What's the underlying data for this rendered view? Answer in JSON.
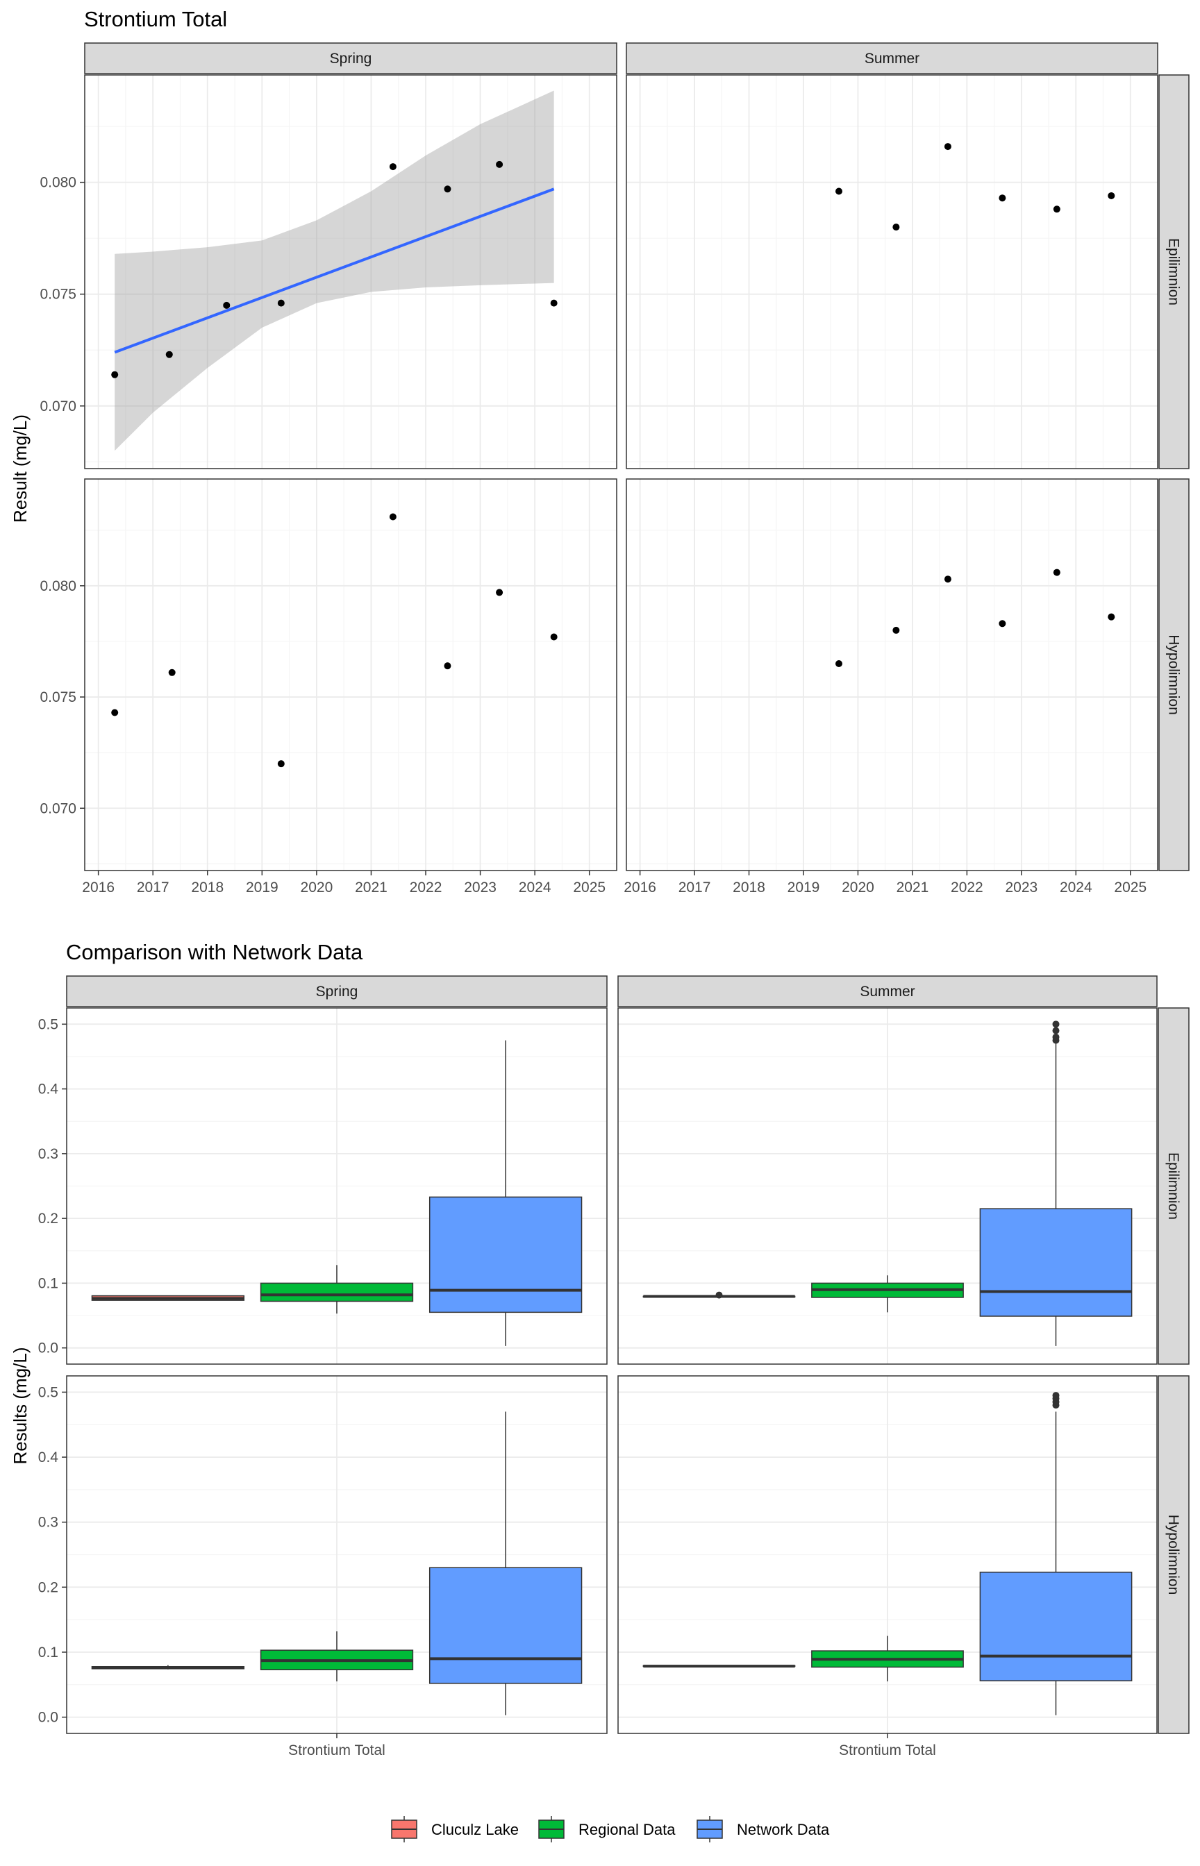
{
  "chart_data": [
    {
      "type": "scatter",
      "title": "Strontium Total",
      "ylabel": "Result (mg/L)",
      "xlabel": "",
      "xlim": [
        2015.75,
        2025.5
      ],
      "ylim": [
        0.0672,
        0.0848
      ],
      "xticks": [
        2016,
        2017,
        2018,
        2019,
        2020,
        2021,
        2022,
        2023,
        2024,
        2025
      ],
      "yticks": [
        0.07,
        0.075,
        0.08
      ],
      "ytick_labels": [
        "0.070",
        "0.075",
        "0.080"
      ],
      "col_facets": [
        "Spring",
        "Summer"
      ],
      "row_facets": [
        "Epilimnion",
        "Hypolimnion"
      ],
      "grid": true,
      "panels": [
        {
          "col": "Spring",
          "row": "Epilimnion",
          "points": [
            {
              "x": 2016.3,
              "y": 0.0714
            },
            {
              "x": 2017.3,
              "y": 0.0723
            },
            {
              "x": 2018.35,
              "y": 0.0745
            },
            {
              "x": 2019.35,
              "y": 0.0746
            },
            {
              "x": 2021.4,
              "y": 0.0807
            },
            {
              "x": 2022.4,
              "y": 0.0797
            },
            {
              "x": 2023.35,
              "y": 0.0808
            },
            {
              "x": 2024.35,
              "y": 0.0746
            }
          ],
          "trend": {
            "x": [
              2016.3,
              2024.35
            ],
            "y": [
              0.0724,
              0.0797
            ],
            "color": "#3366FF"
          },
          "ribbon": [
            {
              "x": 2016.3,
              "lo": 0.068,
              "hi": 0.0768
            },
            {
              "x": 2017.0,
              "lo": 0.0697,
              "hi": 0.0769
            },
            {
              "x": 2018.0,
              "lo": 0.0717,
              "hi": 0.0771
            },
            {
              "x": 2019.0,
              "lo": 0.0735,
              "hi": 0.0774
            },
            {
              "x": 2020.0,
              "lo": 0.0746,
              "hi": 0.0783
            },
            {
              "x": 2021.0,
              "lo": 0.0751,
              "hi": 0.0796
            },
            {
              "x": 2022.0,
              "lo": 0.0753,
              "hi": 0.0812
            },
            {
              "x": 2023.0,
              "lo": 0.0754,
              "hi": 0.0826
            },
            {
              "x": 2024.35,
              "lo": 0.0755,
              "hi": 0.0841
            }
          ]
        },
        {
          "col": "Summer",
          "row": "Epilimnion",
          "points": [
            {
              "x": 2019.65,
              "y": 0.0796
            },
            {
              "x": 2020.7,
              "y": 0.078
            },
            {
              "x": 2021.65,
              "y": 0.0816
            },
            {
              "x": 2022.65,
              "y": 0.0793
            },
            {
              "x": 2023.65,
              "y": 0.0788
            },
            {
              "x": 2024.65,
              "y": 0.0794
            }
          ]
        },
        {
          "col": "Spring",
          "row": "Hypolimnion",
          "points": [
            {
              "x": 2016.3,
              "y": 0.0743
            },
            {
              "x": 2017.35,
              "y": 0.0761
            },
            {
              "x": 2019.35,
              "y": 0.072
            },
            {
              "x": 2021.4,
              "y": 0.0831
            },
            {
              "x": 2022.4,
              "y": 0.0764
            },
            {
              "x": 2023.35,
              "y": 0.0797
            },
            {
              "x": 2024.35,
              "y": 0.0777
            }
          ]
        },
        {
          "col": "Summer",
          "row": "Hypolimnion",
          "points": [
            {
              "x": 2019.65,
              "y": 0.0765
            },
            {
              "x": 2020.7,
              "y": 0.078
            },
            {
              "x": 2021.65,
              "y": 0.0803
            },
            {
              "x": 2022.65,
              "y": 0.0783
            },
            {
              "x": 2023.65,
              "y": 0.0806
            },
            {
              "x": 2024.65,
              "y": 0.0786
            }
          ]
        }
      ]
    },
    {
      "type": "boxplot",
      "title": "Comparison with Network Data",
      "ylabel": "Results (mg/L)",
      "categories": [
        "Strontium Total"
      ],
      "ylim": [
        -0.025,
        0.525
      ],
      "yticks": [
        0.0,
        0.1,
        0.2,
        0.3,
        0.4,
        0.5
      ],
      "ytick_labels": [
        "0.0",
        "0.1",
        "0.2",
        "0.3",
        "0.4",
        "0.5"
      ],
      "col_facets": [
        "Spring",
        "Summer"
      ],
      "row_facets": [
        "Epilimnion",
        "Hypolimnion"
      ],
      "grid": true,
      "legend_position": "bottom",
      "groups": [
        {
          "name": "Cluculz Lake",
          "color": "#F8766D"
        },
        {
          "name": "Regional Data",
          "color": "#00BA38"
        },
        {
          "name": "Network Data",
          "color": "#619CFF"
        }
      ],
      "panels": [
        {
          "col": "Spring",
          "row": "Epilimnion",
          "boxes": [
            {
              "group": "Cluculz Lake",
              "min": 0.0735,
              "q1": 0.0735,
              "median": 0.0765,
              "q3": 0.0805,
              "max": 0.0808,
              "outliers": []
            },
            {
              "group": "Regional Data",
              "min": 0.053,
              "q1": 0.072,
              "median": 0.082,
              "q3": 0.1,
              "max": 0.128,
              "outliers": []
            },
            {
              "group": "Network Data",
              "min": 0.003,
              "q1": 0.055,
              "median": 0.089,
              "q3": 0.233,
              "max": 0.475,
              "outliers": []
            }
          ]
        },
        {
          "col": "Summer",
          "row": "Epilimnion",
          "boxes": [
            {
              "group": "Cluculz Lake",
              "min": 0.0788,
              "q1": 0.0791,
              "median": 0.0795,
              "q3": 0.0797,
              "max": 0.0797,
              "outliers": [
                0.0816
              ]
            },
            {
              "group": "Regional Data",
              "min": 0.055,
              "q1": 0.078,
              "median": 0.09,
              "q3": 0.1,
              "max": 0.112,
              "outliers": []
            },
            {
              "group": "Network Data",
              "min": 0.003,
              "q1": 0.049,
              "median": 0.087,
              "q3": 0.215,
              "max": 0.47,
              "outliers": [
                0.475,
                0.48,
                0.49,
                0.5
              ]
            }
          ]
        },
        {
          "col": "Spring",
          "row": "Hypolimnion",
          "boxes": [
            {
              "group": "Cluculz Lake",
              "min": 0.0735,
              "q1": 0.0745,
              "median": 0.0765,
              "q3": 0.0778,
              "max": 0.08,
              "outliers": []
            },
            {
              "group": "Regional Data",
              "min": 0.055,
              "q1": 0.073,
              "median": 0.087,
              "q3": 0.103,
              "max": 0.132,
              "outliers": []
            },
            {
              "group": "Network Data",
              "min": 0.003,
              "q1": 0.052,
              "median": 0.09,
              "q3": 0.23,
              "max": 0.47,
              "outliers": []
            }
          ]
        },
        {
          "col": "Summer",
          "row": "Hypolimnion",
          "boxes": [
            {
              "group": "Cluculz Lake",
              "min": 0.0778,
              "q1": 0.0782,
              "median": 0.0785,
              "q3": 0.0792,
              "max": 0.0795,
              "outliers": []
            },
            {
              "group": "Regional Data",
              "min": 0.055,
              "q1": 0.077,
              "median": 0.089,
              "q3": 0.102,
              "max": 0.125,
              "outliers": []
            },
            {
              "group": "Network Data",
              "min": 0.003,
              "q1": 0.056,
              "median": 0.094,
              "q3": 0.223,
              "max": 0.47,
              "outliers": [
                0.48,
                0.485,
                0.49,
                0.495
              ]
            }
          ]
        }
      ]
    }
  ]
}
